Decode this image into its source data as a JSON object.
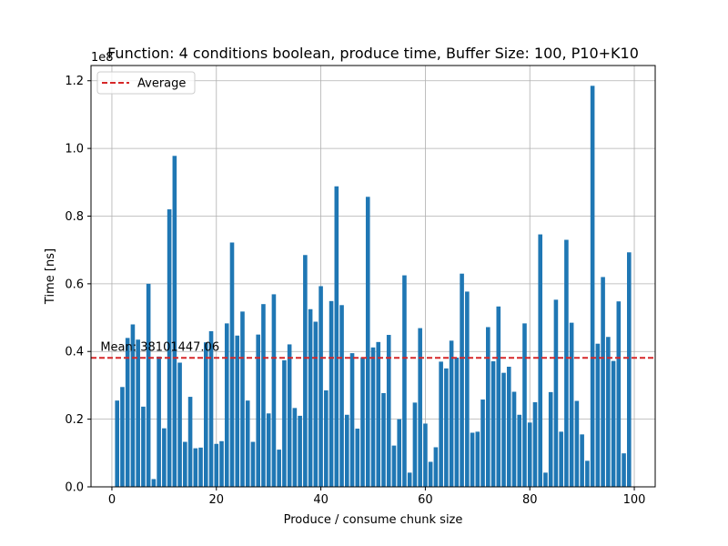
{
  "chart_data": {
    "type": "bar",
    "title": "Function: 4 conditions boolean, produce time, Buffer Size: 100, P10+K10",
    "xlabel": "Produce / consume chunk size",
    "ylabel": "Time [ns]",
    "y_scale_label": "1e8",
    "xlim": [
      -4,
      104
    ],
    "ylim": [
      0,
      1.245
    ],
    "x_ticks": [
      0,
      20,
      40,
      60,
      80,
      100
    ],
    "y_ticks": [
      0.0,
      0.2,
      0.4,
      0.6,
      0.8,
      1.0,
      1.2
    ],
    "x_tick_labels": [
      "0",
      "20",
      "40",
      "60",
      "80",
      "100"
    ],
    "y_tick_labels": [
      "0.0",
      "0.2",
      "0.4",
      "0.6",
      "0.8",
      "1.0",
      "1.2"
    ],
    "grid": true,
    "bar_color": "#1f77b4",
    "series": [
      {
        "x": [
          1,
          2,
          3,
          4,
          5,
          6,
          7,
          8,
          9,
          10,
          11,
          12,
          13,
          14,
          15,
          16,
          17,
          18,
          19,
          20,
          21,
          22,
          23,
          24,
          25,
          26,
          27,
          28,
          29,
          30,
          31,
          32,
          33,
          34,
          35,
          36,
          37,
          38,
          39,
          40,
          41,
          42,
          43,
          44,
          45,
          46,
          47,
          48,
          49,
          50,
          51,
          52,
          53,
          54,
          55,
          56,
          57,
          58,
          59,
          60,
          61,
          62,
          63,
          64,
          65,
          66,
          67,
          68,
          69,
          70,
          71,
          72,
          73,
          74,
          75,
          76,
          77,
          78,
          79,
          80,
          81,
          82,
          83,
          84,
          85,
          86,
          87,
          88,
          89,
          90,
          91,
          92,
          93,
          94,
          95,
          96,
          97,
          98,
          99
        ],
        "values": [
          0.255,
          0.295,
          0.44,
          0.48,
          0.435,
          0.237,
          0.6,
          0.023,
          0.385,
          0.173,
          0.82,
          0.978,
          0.367,
          0.133,
          0.266,
          0.114,
          0.116,
          0.427,
          0.46,
          0.127,
          0.135,
          0.483,
          0.722,
          0.447,
          0.518,
          0.255,
          0.133,
          0.45,
          0.54,
          0.217,
          0.569,
          0.11,
          0.374,
          0.421,
          0.233,
          0.21,
          0.685,
          0.525,
          0.488,
          0.593,
          0.285,
          0.549,
          0.888,
          0.537,
          0.213,
          0.395,
          0.172,
          0.383,
          0.857,
          0.412,
          0.428,
          0.277,
          0.449,
          0.122,
          0.2,
          0.625,
          0.042,
          0.249,
          0.469,
          0.187,
          0.074,
          0.117,
          0.37,
          0.35,
          0.432,
          0.382,
          0.63,
          0.577,
          0.16,
          0.163,
          0.258,
          0.472,
          0.371,
          0.533,
          0.337,
          0.355,
          0.281,
          0.213,
          0.483,
          0.19,
          0.25,
          0.746,
          0.042,
          0.28,
          0.553,
          0.163,
          0.73,
          0.485,
          0.254,
          0.155,
          0.077,
          1.185,
          0.423,
          0.62,
          0.443,
          0.372,
          0.548,
          0.099,
          0.693
        ]
      }
    ],
    "average": {
      "value": 0.381,
      "legend_label": "Average",
      "annotation": "Mean: 38101447.06",
      "color": "#d62728"
    },
    "legend_position": "upper-left"
  }
}
